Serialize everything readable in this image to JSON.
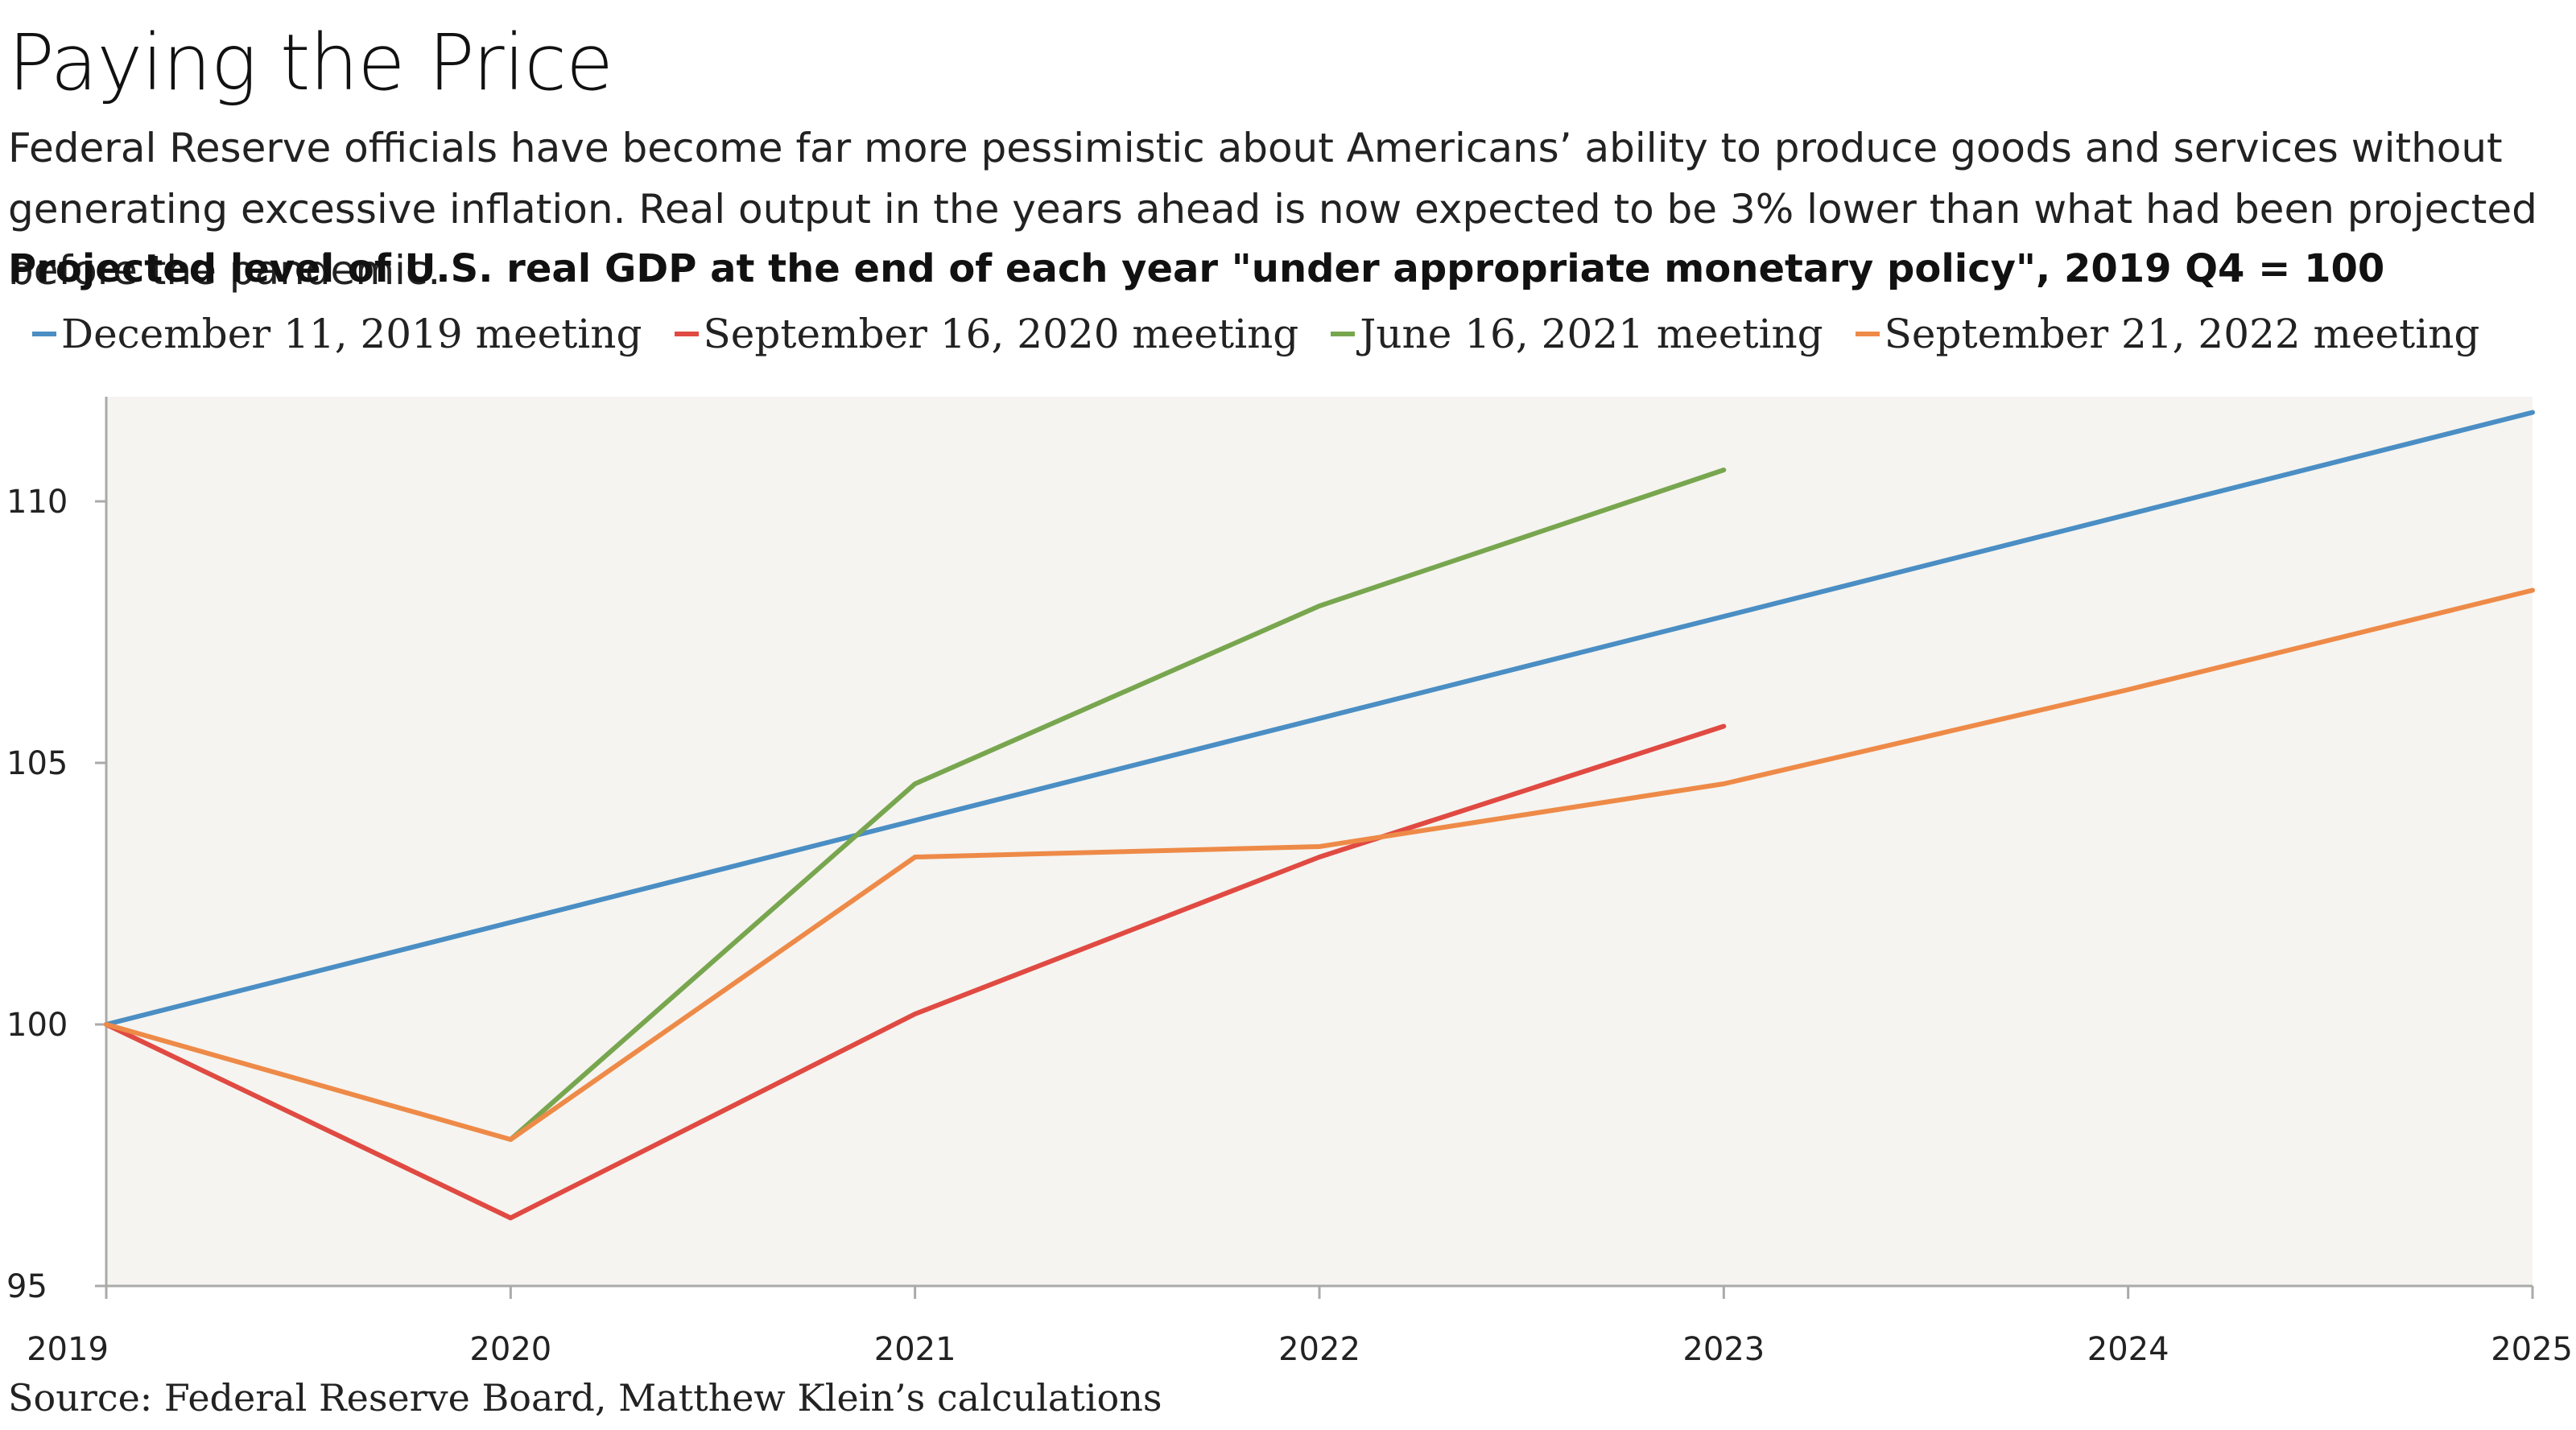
{
  "header": {
    "title": "Paying the Price",
    "subtitle": "Federal Reserve officials have become far more pessimistic about Americans’ ability to produce goods and services without generating excessive inflation. Real output in the years ahead is now expected to be 3% lower than what had been projected before the pandemic.",
    "chart_heading": "Projected level of U.S. real GDP at the end of each year \"under appropriate monetary policy\", 2019 Q4 = 100"
  },
  "footer": {
    "source": "Source: Federal Reserve Board, Matthew Klein’s calculations"
  },
  "chart_data": {
    "type": "line",
    "title": "Projected level of U.S. real GDP at the end of each year \"under appropriate monetary policy\", 2019 Q4 = 100",
    "xlabel": "",
    "ylabel": "",
    "x": [
      "2019",
      "2020",
      "2021",
      "2022",
      "2023",
      "2024",
      "2025"
    ],
    "xlim": [
      2019,
      2025
    ],
    "ylim": [
      95,
      112
    ],
    "yticks": [
      "95",
      "100",
      "105",
      "110"
    ],
    "grid": false,
    "legend_position": "top",
    "plot_background": "#f5f4f0",
    "series": [
      {
        "name": "December 11, 2019 meeting",
        "color": "#4a8ec4",
        "points": [
          [
            2019,
            100
          ],
          [
            2025,
            111.7
          ]
        ]
      },
      {
        "name": "September 16, 2020 meeting",
        "color": "#e04a42",
        "points": [
          [
            2019,
            100
          ],
          [
            2020,
            96.3
          ],
          [
            2021,
            100.2
          ],
          [
            2022,
            103.2
          ],
          [
            2023,
            105.7
          ]
        ]
      },
      {
        "name": "June 16, 2021 meeting",
        "color": "#78a64f",
        "points": [
          [
            2020,
            97.8
          ],
          [
            2021,
            104.6
          ],
          [
            2022,
            108.0
          ],
          [
            2023,
            110.6
          ]
        ]
      },
      {
        "name": "September 21, 2022 meeting",
        "color": "#ee8a48",
        "points": [
          [
            2019,
            100
          ],
          [
            2020,
            97.8
          ],
          [
            2021,
            103.2
          ],
          [
            2022,
            103.4
          ],
          [
            2023,
            104.6
          ],
          [
            2024,
            106.4
          ],
          [
            2025,
            108.3
          ]
        ]
      }
    ]
  }
}
